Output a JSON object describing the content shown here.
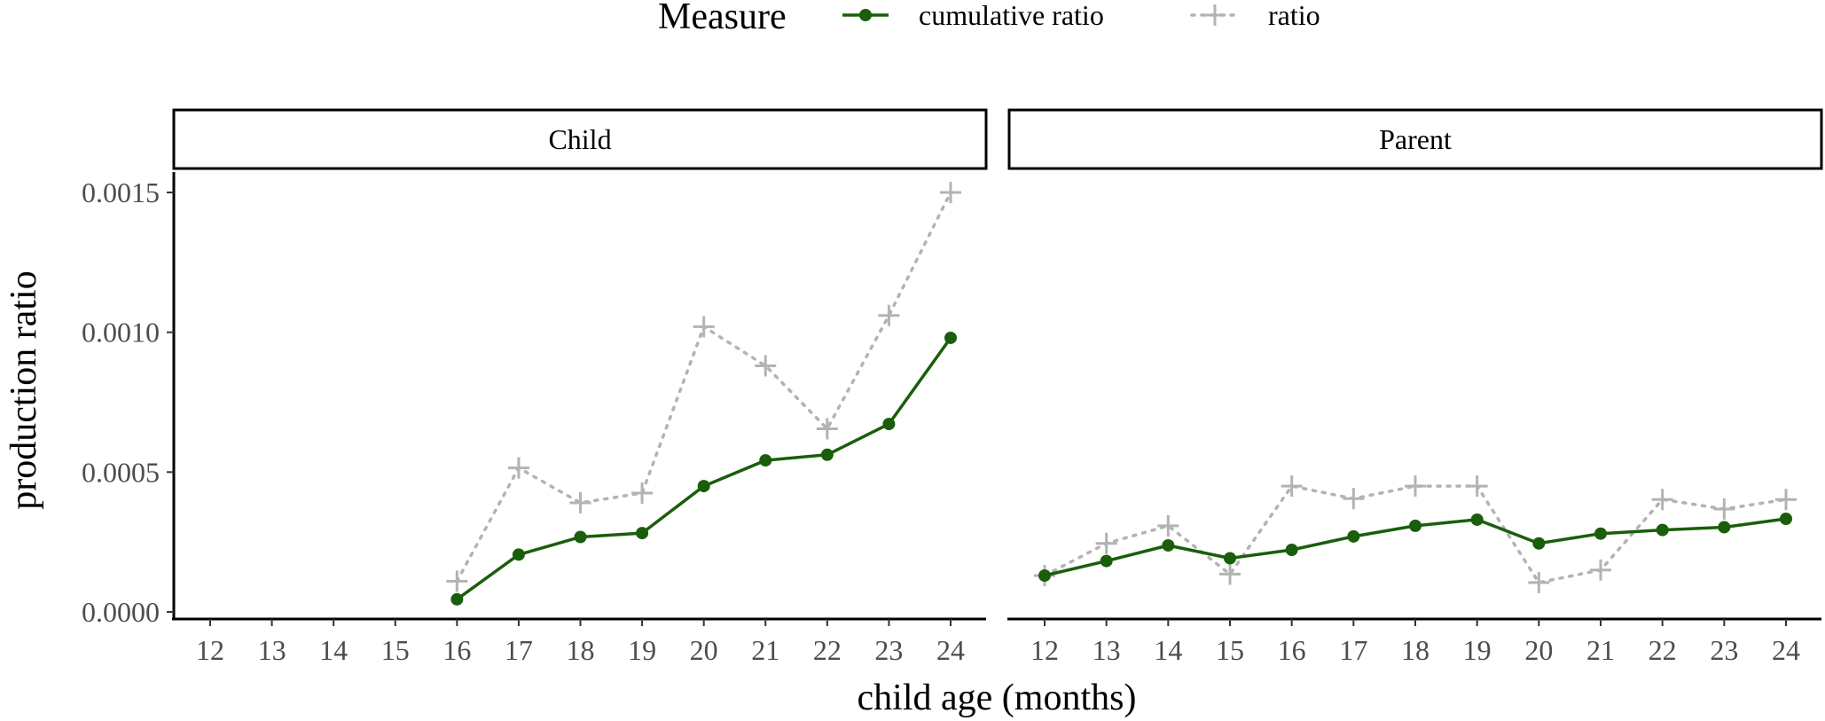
{
  "chart_data": {
    "type": "line",
    "legend": {
      "title": "Measure",
      "placement": "top",
      "entries": [
        {
          "label": "cumulative ratio",
          "color": "#1a5e0b",
          "line": "solid",
          "marker": "circle"
        },
        {
          "label": "ratio",
          "color": "#b3b3b3",
          "line": "dotted",
          "marker": "plus"
        }
      ]
    },
    "xlabel": "child age (months)",
    "ylabel": "production ratio",
    "x_ticks": [
      "12",
      "13",
      "14",
      "15",
      "16",
      "17",
      "18",
      "19",
      "20",
      "21",
      "22",
      "23",
      "24"
    ],
    "y_ticks": [
      "0.0000",
      "0.0005",
      "0.0010",
      "0.0015"
    ],
    "xlim": [
      12,
      24
    ],
    "ylim": [
      0,
      0.0015
    ],
    "grid": false,
    "facets": [
      {
        "name": "Child",
        "series": [
          {
            "name": "cumulative ratio",
            "x": [
              16,
              17,
              18,
              19,
              20,
              21,
              22,
              23,
              24
            ],
            "y": [
              4.5e-05,
              0.000205,
              0.000268,
              0.000282,
              0.00045,
              0.000542,
              0.000562,
              0.000672,
              0.00098
            ]
          },
          {
            "name": "ratio",
            "x": [
              16,
              17,
              18,
              19,
              20,
              21,
              22,
              23,
              24
            ],
            "y": [
              0.00011,
              0.000515,
              0.00039,
              0.000425,
              0.00102,
              0.00088,
              0.000655,
              0.00106,
              0.0015
            ]
          }
        ]
      },
      {
        "name": "Parent",
        "series": [
          {
            "name": "cumulative ratio",
            "x": [
              12,
              13,
              14,
              15,
              16,
              17,
              18,
              19,
              20,
              21,
              22,
              23,
              24
            ],
            "y": [
              0.00013,
              0.000182,
              0.000238,
              0.000192,
              0.000222,
              0.00027,
              0.000308,
              0.00033,
              0.000245,
              0.00028,
              0.000293,
              0.000303,
              0.000333
            ]
          },
          {
            "name": "ratio",
            "x": [
              12,
              13,
              14,
              15,
              16,
              17,
              18,
              19,
              20,
              21,
              22,
              23,
              24
            ],
            "y": [
              0.00013,
              0.000245,
              0.000308,
              0.000135,
              0.00045,
              0.000405,
              0.00045,
              0.00045,
              0.000105,
              0.00015,
              0.000402,
              0.000368,
              0.000402
            ]
          }
        ]
      }
    ]
  }
}
